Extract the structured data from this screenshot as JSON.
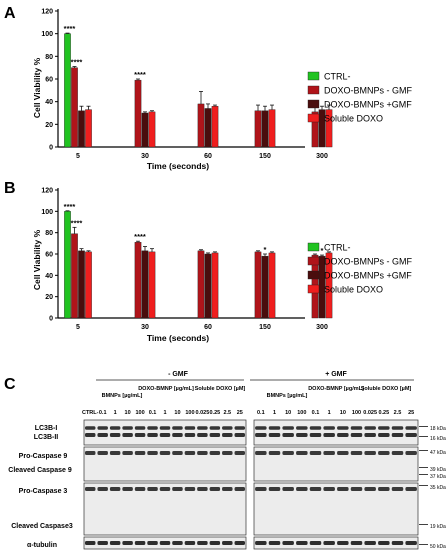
{
  "panels": {
    "a": "A",
    "b": "B",
    "c": "C"
  },
  "legend": [
    "CTRL-",
    "DOXO-BMNPs - GMF",
    "DOXO-BMNPs +GMF",
    "Soluble DOXO"
  ],
  "chart_data": [
    {
      "type": "bar",
      "panel": "A",
      "ylabel": "Cell Viability %",
      "xlabel": "Time (seconds)",
      "ylim": [
        0,
        120
      ],
      "yticks": [
        0,
        20,
        40,
        60,
        80,
        100,
        120
      ],
      "categories": [
        "5",
        "30",
        "60",
        "150",
        "300"
      ],
      "series": [
        {
          "name": "CTRL-",
          "color": "#21c321",
          "values": [
            100,
            null,
            null,
            null,
            null
          ],
          "errors": [
            0.5,
            0,
            0,
            0,
            0
          ]
        },
        {
          "name": "DOXO-BMNPs - GMF",
          "color": "#b0141a",
          "values": [
            70,
            59,
            38,
            32,
            31
          ],
          "errors": [
            1,
            1,
            11,
            5,
            4
          ]
        },
        {
          "name": "DOXO-BMNPs +GMF",
          "color": "#4a0d0d",
          "values": [
            32,
            30,
            34,
            32,
            33
          ],
          "errors": [
            4,
            1,
            4,
            4,
            3
          ]
        },
        {
          "name": "Soluble DOXO",
          "color": "#ef1e1e",
          "values": [
            33,
            31,
            36,
            33,
            33
          ],
          "errors": [
            3,
            1,
            1,
            4,
            4
          ]
        }
      ],
      "annotations": [
        {
          "text": "****",
          "category": "5",
          "series": "CTRL-"
        },
        {
          "text": "****",
          "category": "5",
          "series": "DOXO-BMNPs - GMF"
        },
        {
          "text": "****",
          "category": "30",
          "series": "DOXO-BMNPs - GMF"
        }
      ]
    },
    {
      "type": "bar",
      "panel": "B",
      "ylabel": "Cell Viability %",
      "xlabel": "Time (seconds)",
      "ylim": [
        0,
        120
      ],
      "yticks": [
        0,
        20,
        40,
        60,
        80,
        100,
        120
      ],
      "categories": [
        "5",
        "30",
        "60",
        "150",
        "300"
      ],
      "series": [
        {
          "name": "CTRL-",
          "color": "#21c321",
          "values": [
            100,
            null,
            null,
            null,
            null
          ],
          "errors": [
            0.5,
            0,
            0,
            0,
            0
          ]
        },
        {
          "name": "DOXO-BMNPs - GMF",
          "color": "#b0141a",
          "values": [
            79,
            71,
            63,
            62,
            59
          ],
          "errors": [
            6,
            1,
            1,
            1,
            1
          ]
        },
        {
          "name": "DOXO-BMNPs +GMF",
          "color": "#4a0d0d",
          "values": [
            63,
            63,
            60,
            58,
            58
          ],
          "errors": [
            2,
            4,
            1,
            2,
            1
          ]
        },
        {
          "name": "Soluble DOXO",
          "color": "#ef1e1e",
          "values": [
            62,
            62,
            61,
            61,
            61
          ],
          "errors": [
            1,
            3,
            1,
            1,
            1
          ]
        }
      ],
      "annotations": [
        {
          "text": "****",
          "category": "5",
          "series": "CTRL-"
        },
        {
          "text": "****",
          "category": "5",
          "series": "DOXO-BMNPs - GMF"
        },
        {
          "text": "****",
          "category": "30",
          "series": "DOXO-BMNPs - GMF"
        },
        {
          "text": "*",
          "category": "150",
          "series": "DOXO-BMNPs +GMF"
        },
        {
          "text": "*",
          "category": "300",
          "series": "DOXO-BMNPs +GMF"
        }
      ]
    }
  ],
  "blot": {
    "groups": [
      "- GMF",
      "+ GMF"
    ],
    "col_headers": [
      "BMNPs [µg/mL]",
      "DOXO-BMNP [µg/mL]",
      "Soluble DOXO [µM]"
    ],
    "ctrl_label": "CTRL-",
    "lanes_left": [
      "CTRL-",
      "0.1",
      "1",
      "10",
      "100",
      "0.1",
      "1",
      "10",
      "100",
      "0.025",
      "0.25",
      "2.5",
      "25"
    ],
    "lanes_right": [
      "0.1",
      "1",
      "10",
      "100",
      "0.1",
      "1",
      "10",
      "100",
      "0.025",
      "0.25",
      "2.5",
      "25"
    ],
    "row_labels": [
      "LC3B-I",
      "LC3B-II",
      "Pro-Caspase 9",
      "Cleaved Caspase 9",
      "Pro-Caspase 3",
      "Cleaved Caspase3",
      "α-tubulin"
    ],
    "kda": [
      "18 kDa",
      "16 kDa",
      "47 kDa",
      "39 kDa",
      "37 kDa",
      "35 kDa",
      "19 kDa",
      "50 kDa"
    ]
  }
}
